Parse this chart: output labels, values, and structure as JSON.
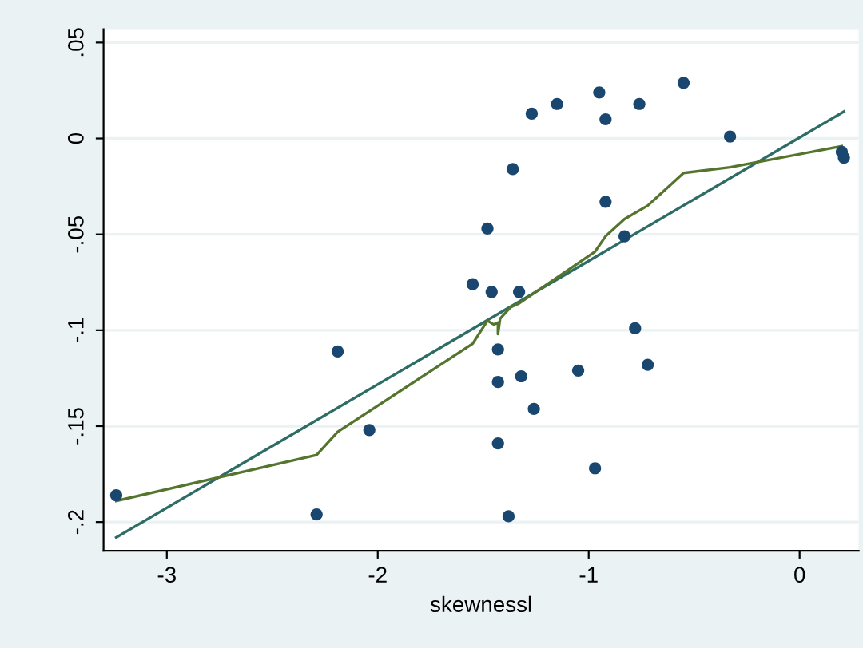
{
  "chart_data": {
    "type": "scatter",
    "xlabel": "skewnessl",
    "xlim": [
      -3.3,
      0.28
    ],
    "ylim": [
      -0.215,
      0.057
    ],
    "xticks": [
      {
        "value": -3,
        "label": "-3"
      },
      {
        "value": -2,
        "label": "-2"
      },
      {
        "value": -1,
        "label": "-1"
      },
      0
    ],
    "yticks": [
      {
        "value": 0.05,
        "label": ".05"
      },
      0,
      {
        "value": -0.05,
        "label": "-.05"
      },
      {
        "value": -0.1,
        "label": "-.1"
      },
      {
        "value": -0.15,
        "label": "-.15"
      },
      {
        "value": -0.2,
        "label": "-.2"
      }
    ],
    "grid": "y",
    "legend": false,
    "series": [
      {
        "color": "#1a476f",
        "marker": "circle",
        "x": [
          -0.55,
          -0.95,
          -0.76,
          -1.15,
          -1.27,
          -0.92,
          -0.33,
          0.2,
          0.21,
          -1.36,
          -0.92,
          -1.48,
          -0.83,
          -1.55,
          -1.46,
          -1.33,
          -0.78,
          -2.19,
          -1.43,
          -0.72,
          -1.05,
          -1.32,
          -1.43,
          -1.26,
          -2.04,
          -1.43,
          -0.97,
          -3.24,
          -2.29,
          -1.38
        ],
        "values": [
          0.029,
          0.024,
          0.018,
          0.018,
          0.013,
          0.01,
          0.001,
          -0.007,
          -0.01,
          -0.016,
          -0.033,
          -0.047,
          -0.051,
          -0.076,
          -0.08,
          -0.08,
          -0.099,
          -0.111,
          -0.11,
          -0.118,
          -0.121,
          -0.124,
          -0.127,
          -0.141,
          -0.152,
          -0.159,
          -0.172,
          -0.186,
          -0.196,
          -0.197
        ]
      },
      {
        "type": "line",
        "color": "#2d6d66",
        "marker": "none",
        "line_style": "solid",
        "x": [
          -3.24,
          0.21
        ],
        "values": [
          -0.208,
          0.014
        ]
      },
      {
        "type": "line",
        "color": "#55752f",
        "marker": "none",
        "line_style": "solid",
        "x": [
          -3.24,
          -2.29,
          -2.19,
          -1.55,
          -1.48,
          -1.45,
          -1.43,
          -1.43,
          -1.42,
          -1.37,
          -1.33,
          -0.97,
          -0.92,
          -0.83,
          -0.72,
          -0.55,
          -0.33,
          0.2
        ],
        "values": [
          -0.189,
          -0.165,
          -0.153,
          -0.107,
          -0.095,
          -0.097,
          -0.096,
          -0.102,
          -0.094,
          -0.088,
          -0.086,
          -0.059,
          -0.051,
          -0.042,
          -0.035,
          -0.018,
          -0.015,
          -0.004
        ]
      }
    ]
  }
}
